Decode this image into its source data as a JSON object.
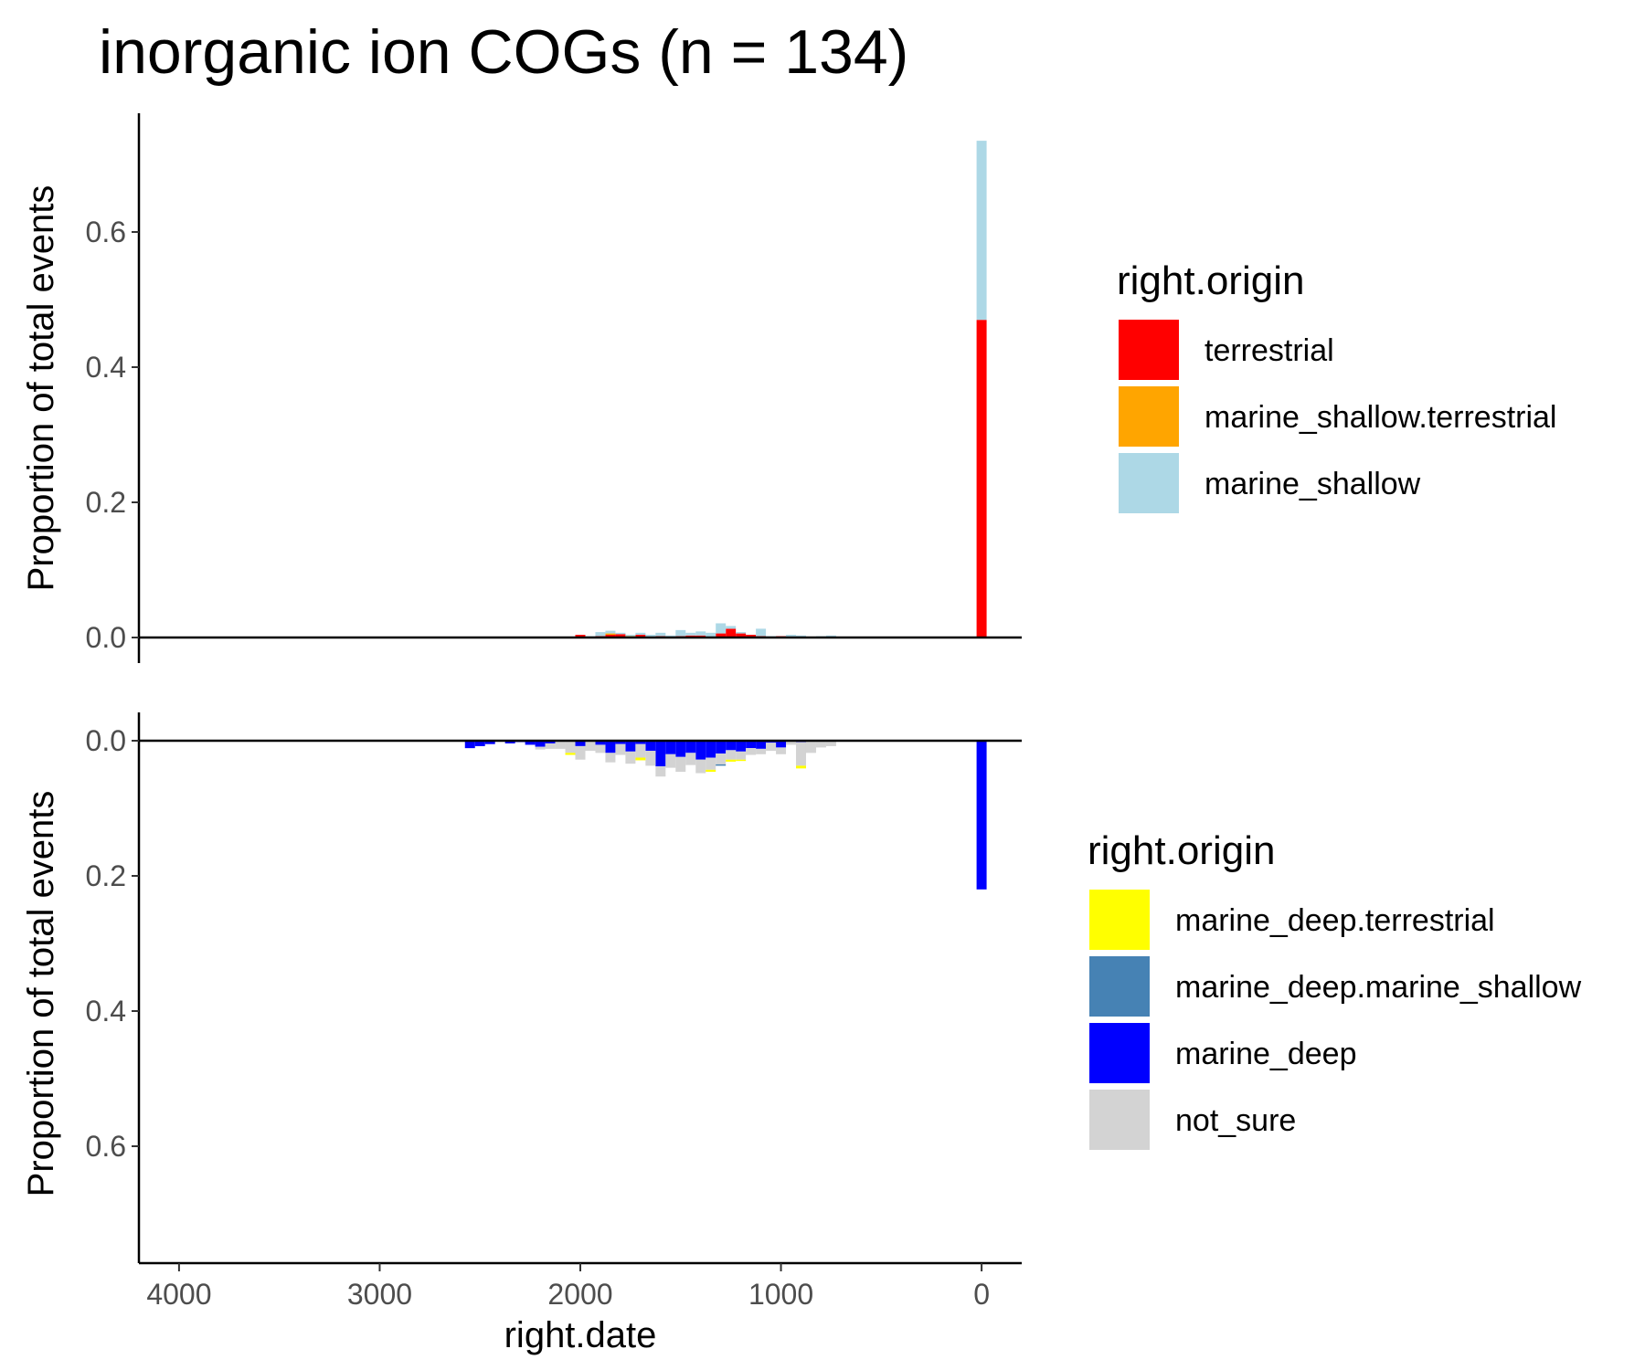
{
  "chart_data": {
    "type": "bar",
    "title": "inorganic ion COGs (n = 134)",
    "xlabel": "right.date",
    "xlim": [
      4200,
      -200
    ],
    "xticks": [
      4000,
      3000,
      2000,
      1000,
      0
    ],
    "bin_width": 50,
    "panels": [
      {
        "name": "top",
        "ylabel": "Proportion of total events",
        "ylim": [
          0,
          0.75
        ],
        "yticks": [
          0.0,
          0.2,
          0.4,
          0.6
        ],
        "ytick_labels": [
          "0.0",
          "0.2",
          "0.4",
          "0.6"
        ],
        "direction": "up",
        "legend": {
          "title": "right.origin",
          "entries": [
            {
              "label": "terrestrial",
              "color": "#ff0000"
            },
            {
              "label": "marine_shallow.terrestrial",
              "color": "#ffa500"
            },
            {
              "label": "marine_shallow",
              "color": "#add8e6"
            }
          ]
        },
        "series": [
          {
            "name": "terrestrial",
            "color": "#ff0000",
            "x": [
              2150,
              2000,
              1900,
              1850,
              1800,
              1700,
              1600,
              1500,
              1450,
              1400,
              1300,
              1250,
              1200,
              1150,
              1100,
              1000,
              900,
              0
            ],
            "values": [
              0.001,
              0.004,
              0.002,
              0.004,
              0.005,
              0.004,
              0.002,
              0.002,
              0.003,
              0.003,
              0.006,
              0.013,
              0.006,
              0.004,
              0.002,
              0.002,
              0.001,
              0.47
            ]
          },
          {
            "name": "marine_shallow.terrestrial",
            "color": "#ffa500",
            "x": [
              1850,
              1750
            ],
            "values": [
              0.002,
              0.002
            ]
          },
          {
            "name": "marine_shallow",
            "color": "#add8e6",
            "x": [
              1950,
              1900,
              1850,
              1800,
              1750,
              1700,
              1650,
              1600,
              1550,
              1500,
              1450,
              1400,
              1350,
              1300,
              1250,
              1200,
              1100,
              1050,
              950,
              900,
              800,
              750,
              0
            ],
            "values": [
              0.002,
              0.006,
              0.004,
              0.002,
              0.002,
              0.003,
              0.004,
              0.005,
              0.003,
              0.009,
              0.004,
              0.006,
              0.007,
              0.015,
              0.004,
              0.002,
              0.011,
              0.002,
              0.004,
              0.002,
              0.002,
              0.003,
              0.265
            ]
          }
        ]
      },
      {
        "name": "bottom",
        "ylabel": "Proportion of total events",
        "ylim": [
          0,
          0.75
        ],
        "yticks": [
          0.0,
          0.2,
          0.4,
          0.6
        ],
        "ytick_labels": [
          "0.0",
          "0.2",
          "0.4",
          "0.6"
        ],
        "direction": "down",
        "legend": {
          "title": "right.origin",
          "entries": [
            {
              "label": "marine_deep.terrestrial",
              "color": "#ffff00"
            },
            {
              "label": "marine_deep.marine_shallow",
              "color": "#4682b4"
            },
            {
              "label": "marine_deep",
              "color": "#0000ff"
            },
            {
              "label": "not_sure",
              "color": "#d3d3d3"
            }
          ]
        },
        "series": [
          {
            "name": "marine_deep",
            "color": "#0000ff",
            "x": [
              3000,
              2750,
              2550,
              2500,
              2450,
              2350,
              2300,
              2250,
              2200,
              2150,
              2000,
              1900,
              1850,
              1800,
              1750,
              1700,
              1650,
              1600,
              1550,
              1500,
              1450,
              1400,
              1350,
              1300,
              1250,
              1200,
              1150,
              1100,
              1050,
              1000,
              900,
              0
            ],
            "values": [
              0.001,
              0.001,
              0.011,
              0.008,
              0.005,
              0.004,
              0.002,
              0.006,
              0.009,
              0.004,
              0.008,
              0.006,
              0.018,
              0.005,
              0.016,
              0.005,
              0.015,
              0.038,
              0.02,
              0.024,
              0.018,
              0.028,
              0.025,
              0.019,
              0.014,
              0.016,
              0.011,
              0.012,
              0.003,
              0.01,
              0.002,
              0.22
            ]
          },
          {
            "name": "not_sure",
            "color": "#d3d3d3",
            "x": [
              2200,
              2150,
              2100,
              2050,
              2000,
              1950,
              1900,
              1850,
              1800,
              1750,
              1700,
              1650,
              1600,
              1550,
              1500,
              1450,
              1400,
              1350,
              1300,
              1250,
              1200,
              1150,
              1100,
              1050,
              1000,
              950,
              900,
              850,
              800,
              750
            ],
            "values": [
              0.004,
              0.008,
              0.012,
              0.018,
              0.02,
              0.015,
              0.012,
              0.014,
              0.016,
              0.018,
              0.02,
              0.022,
              0.015,
              0.02,
              0.022,
              0.018,
              0.02,
              0.018,
              0.016,
              0.014,
              0.012,
              0.01,
              0.008,
              0.012,
              0.01,
              0.006,
              0.035,
              0.018,
              0.01,
              0.008
            ]
          },
          {
            "name": "marine_deep.terrestrial",
            "color": "#ffff00",
            "x": [
              2050,
              1700,
              1350,
              1250,
              1200,
              900
            ],
            "values": [
              0.003,
              0.004,
              0.003,
              0.003,
              0.002,
              0.004
            ]
          },
          {
            "name": "marine_deep.marine_shallow",
            "color": "#4682b4",
            "x": [
              1300
            ],
            "values": [
              0.002
            ]
          }
        ]
      }
    ]
  }
}
